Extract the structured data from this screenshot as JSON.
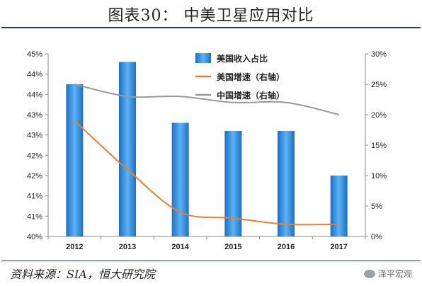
{
  "header": {
    "title": "图表30：   中美卫星应用对比"
  },
  "footer": {
    "source": "资料来源：SIA，恒大研究院",
    "watermark": "泽平宏观"
  },
  "chart_data": {
    "type": "bar",
    "categories": [
      "2012",
      "2013",
      "2014",
      "2015",
      "2016",
      "2017"
    ],
    "left_axis": {
      "ticks": [
        "45%",
        "44%",
        "44%",
        "43%",
        "43%",
        "42%",
        "42%",
        "41%",
        "41%",
        "40%"
      ],
      "ylim": [
        40.0,
        44.5
      ]
    },
    "right_axis": {
      "ticks": [
        "30%",
        "25%",
        "20%",
        "15%",
        "10%",
        "5%",
        "0%"
      ],
      "ylim": [
        0,
        30
      ]
    },
    "series": [
      {
        "name": "美国收入占比",
        "type": "bar",
        "axis": "left",
        "values": [
          43.75,
          44.3,
          42.8,
          42.6,
          42.6,
          41.5
        ],
        "color": "#2e86d8"
      },
      {
        "name": "美国增速（右轴）",
        "type": "line",
        "axis": "right",
        "values": [
          19,
          11,
          4,
          3,
          2,
          2
        ],
        "color": "#ed7d31"
      },
      {
        "name": "中国增速（右轴）",
        "type": "line",
        "axis": "right",
        "values": [
          25,
          23,
          23,
          22,
          22,
          20
        ],
        "color": "#999999"
      }
    ],
    "legend_position": "top-right",
    "grid": false
  }
}
